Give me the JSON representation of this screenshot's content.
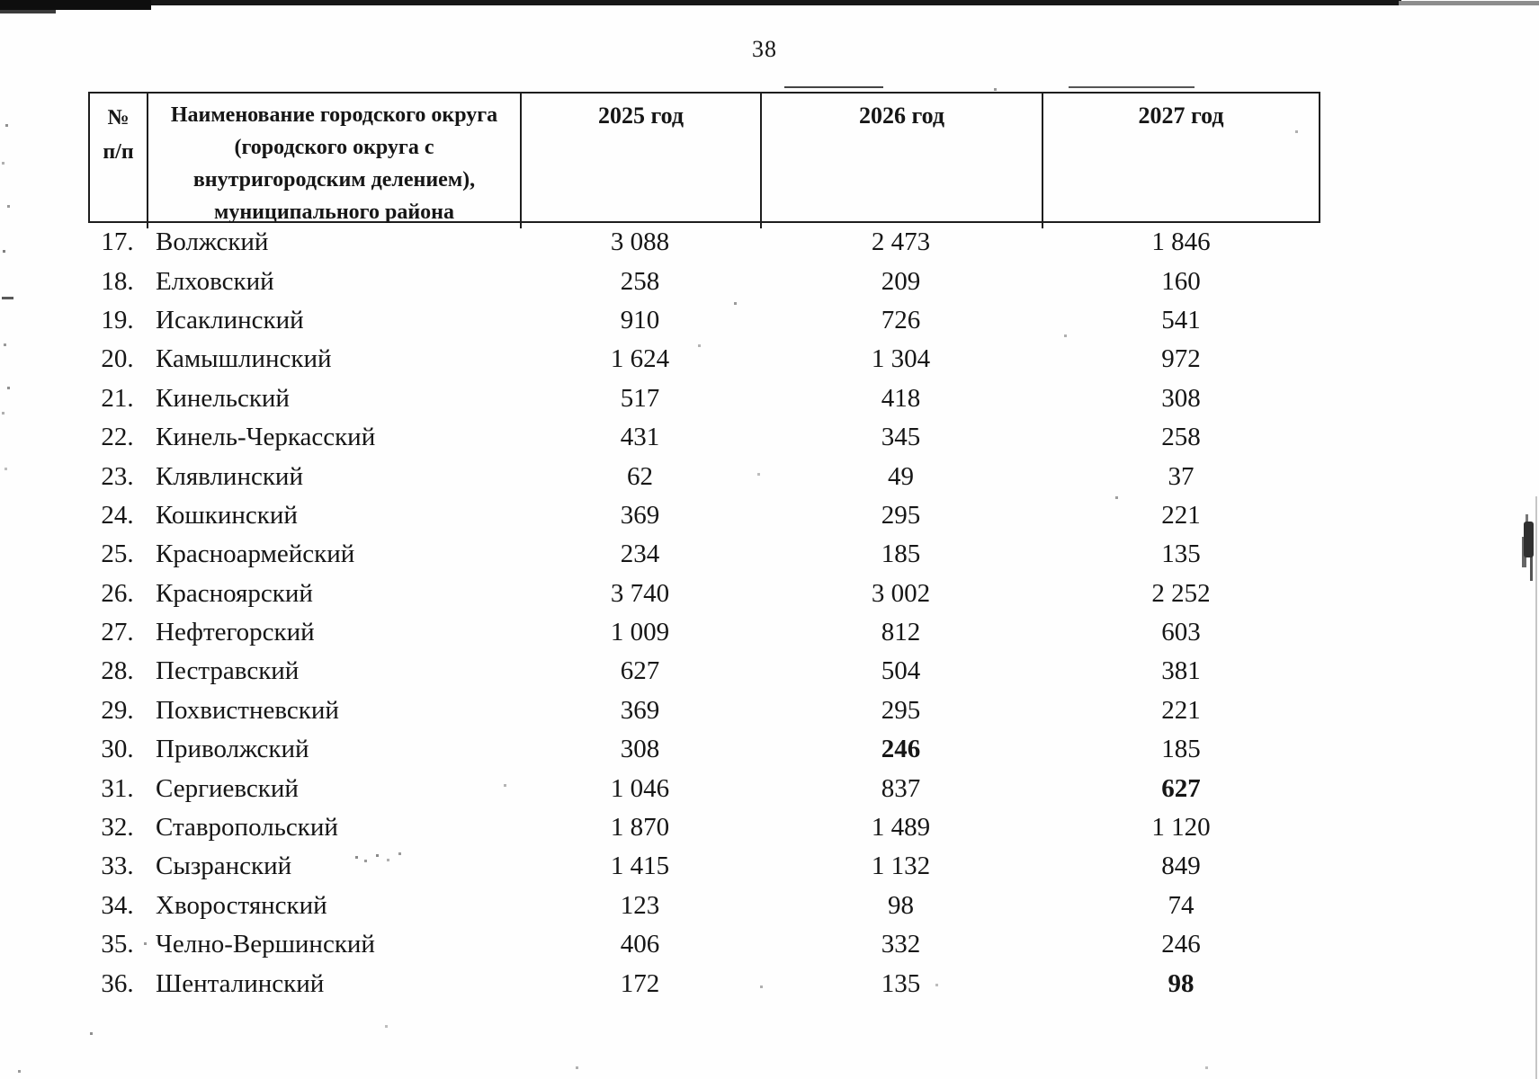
{
  "page": {
    "number": "38"
  },
  "table": {
    "header": {
      "num_line1": "№",
      "num_line2": "п/п",
      "name_lines": [
        "Наименование городского округа",
        "(городского округа с",
        "внутригородским делением),",
        "муниципального района"
      ],
      "years": [
        "2025 год",
        "2026 год",
        "2027 год"
      ]
    },
    "rows": [
      {
        "num": "17.",
        "name": "Волжский",
        "v2025": "3 088",
        "v2026": "2 473",
        "v2027": "1 846"
      },
      {
        "num": "18.",
        "name": "Елховский",
        "v2025": "258",
        "v2026": "209",
        "v2027": "160"
      },
      {
        "num": "19.",
        "name": "Исаклинский",
        "v2025": "910",
        "v2026": "726",
        "v2027": "541"
      },
      {
        "num": "20.",
        "name": "Камышлинский",
        "v2025": "1 624",
        "v2026": "1 304",
        "v2027": "972"
      },
      {
        "num": "21.",
        "name": "Кинельский",
        "v2025": "517",
        "v2026": "418",
        "v2027": "308"
      },
      {
        "num": "22.",
        "name": "Кинель-Черкасский",
        "v2025": "431",
        "v2026": "345",
        "v2027": "258"
      },
      {
        "num": "23.",
        "name": "Клявлинский",
        "v2025": "62",
        "v2026": "49",
        "v2027": "37"
      },
      {
        "num": "24.",
        "name": "Кошкинский",
        "v2025": "369",
        "v2026": "295",
        "v2027": "221"
      },
      {
        "num": "25.",
        "name": "Красноармейский",
        "v2025": "234",
        "v2026": "185",
        "v2027": "135"
      },
      {
        "num": "26.",
        "name": "Красноярский",
        "v2025": "3 740",
        "v2026": "3 002",
        "v2027": "2 252"
      },
      {
        "num": "27.",
        "name": "Нефтегорский",
        "v2025": "1 009",
        "v2026": "812",
        "v2027": "603"
      },
      {
        "num": "28.",
        "name": "Пестравский",
        "v2025": "627",
        "v2026": "504",
        "v2027": "381"
      },
      {
        "num": "29.",
        "name": "Похвистневский",
        "v2025": "369",
        "v2026": "295",
        "v2027": "221"
      },
      {
        "num": "30.",
        "name": "Приволжский",
        "v2025": "308",
        "v2026": "246",
        "v2027": "185",
        "bold": "v2026"
      },
      {
        "num": "31.",
        "name": "Сергиевский",
        "v2025": "1 046",
        "v2026": "837",
        "v2027": "627",
        "bold": "v2027"
      },
      {
        "num": "32.",
        "name": "Ставропольский",
        "v2025": "1 870",
        "v2026": "1 489",
        "v2027": "1 120"
      },
      {
        "num": "33.",
        "name": "Сызранский",
        "v2025": "1 415",
        "v2026": "1 132",
        "v2027": "849"
      },
      {
        "num": "34.",
        "name": "Хворостянский",
        "v2025": "123",
        "v2026": "98",
        "v2027": "74"
      },
      {
        "num": "35.",
        "name": "Челно-Вершинский",
        "v2025": "406",
        "v2026": "332",
        "v2027": "246"
      },
      {
        "num": "36.",
        "name": "Шенталинский",
        "v2025": "172",
        "v2026": "135",
        "v2027": "98",
        "bold": "v2027"
      }
    ]
  }
}
